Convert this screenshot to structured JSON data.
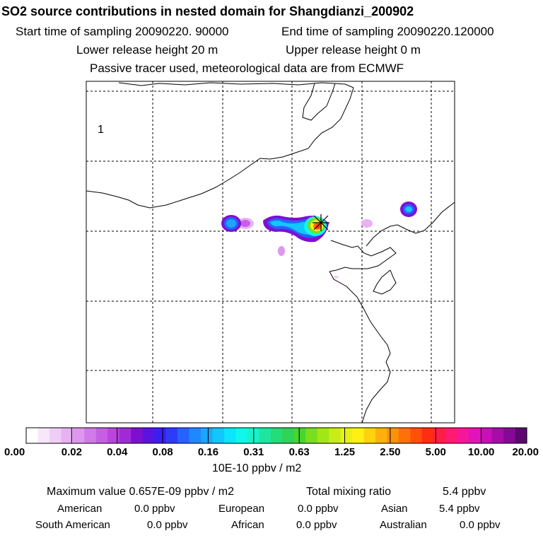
{
  "header": {
    "title": "SO2 source contributions in nested domain for Shangdianzi_200902",
    "start_label": "Start time of sampling 20090220. 90000",
    "end_label": "End time of sampling 20090220.120000",
    "lower_label": "Lower release height   20 m",
    "upper_label": "Upper release height    0 m",
    "tracer_label": "Passive tracer used, meteorological data are from ECMWF"
  },
  "chart_data": {
    "type": "heatmap",
    "title": "SO2 source contributions in nested domain for Shangdianzi_200902",
    "panel_label": "1",
    "colorbar": {
      "tick_labels": [
        "0.00",
        "0.02",
        "0.04",
        "0.08",
        "0.16",
        "0.31",
        "0.63",
        "1.25",
        "2.50",
        "5.00",
        "10.00",
        "20.00"
      ],
      "unit_label": "10E-10 ppbv / m2",
      "colors": [
        "#ffffff",
        "#f8e6fb",
        "#f0cdf6",
        "#e8b2f2",
        "#df96ee",
        "#d27ae8",
        "#c75fe4",
        "#b944df",
        "#a12ad7",
        "#7d10d0",
        "#5a14dd",
        "#3b1ff0",
        "#2e3cf8",
        "#2463ff",
        "#1f87ff",
        "#18a8ff",
        "#12c6ff",
        "#0de4ff",
        "#11f6ea",
        "#18f2c6",
        "#1ee6a0",
        "#23dc7a",
        "#2ed455",
        "#47d62d",
        "#78de1e",
        "#a2e617",
        "#c8ec15",
        "#e9f018",
        "#fff014",
        "#ffd20f",
        "#ffb00c",
        "#ff900a",
        "#ff7008",
        "#ff5008",
        "#ff2e10",
        "#ff1f44",
        "#ff1a72",
        "#f5179a",
        "#e213b8",
        "#c80fb8",
        "#a80ca8",
        "#860995",
        "#5e0670"
      ]
    },
    "plume_levels": [
      "0.00-0.02",
      "0.04",
      "0.08",
      "0.16",
      "0.31",
      "0.63",
      "1.25",
      "2.50",
      "5.00"
    ],
    "receptor_marker": "Shangdianzi"
  },
  "footer": {
    "max_label": "Maximum value  0.657E-09 ppbv / m2",
    "total_label": "Total mixing ratio",
    "total_value": "5.4 ppbv",
    "regions": [
      {
        "name": "American",
        "value": "0.0 ppbv"
      },
      {
        "name": "European",
        "value": "0.0 ppbv"
      },
      {
        "name": "Asian",
        "value": "5.4 ppbv"
      },
      {
        "name": "South American",
        "value": "0.0 ppbv"
      },
      {
        "name": "African",
        "value": "0.0 ppbv"
      },
      {
        "name": "Australian",
        "value": "0.0 ppbv"
      }
    ]
  }
}
